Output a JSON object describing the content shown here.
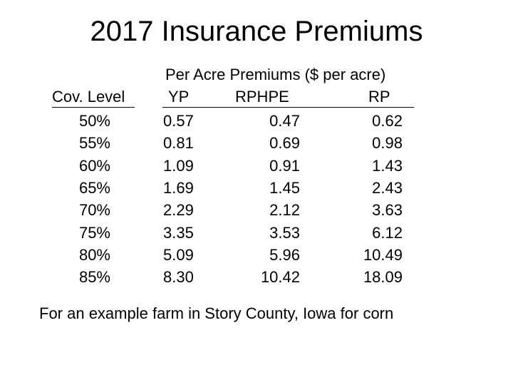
{
  "title": "2017 Insurance Premiums",
  "table": {
    "group_header": "Per Acre Premiums ($ per acre)",
    "columns": [
      "Cov. Level",
      "YP",
      "RPHPE",
      "RP"
    ],
    "rows": [
      [
        "50%",
        "0.57",
        "0.47",
        "0.62"
      ],
      [
        "55%",
        "0.81",
        "0.69",
        "0.98"
      ],
      [
        "60%",
        "1.09",
        "0.91",
        "1.43"
      ],
      [
        "65%",
        "1.69",
        "1.45",
        "2.43"
      ],
      [
        "70%",
        "2.29",
        "2.12",
        "3.63"
      ],
      [
        "75%",
        "3.35",
        "3.53",
        "6.12"
      ],
      [
        "80%",
        "5.09",
        "5.96",
        "10.49"
      ],
      [
        "85%",
        "8.30",
        "10.42",
        "18.09"
      ]
    ]
  },
  "footnote": "For an example farm in Story County, Iowa for corn"
}
